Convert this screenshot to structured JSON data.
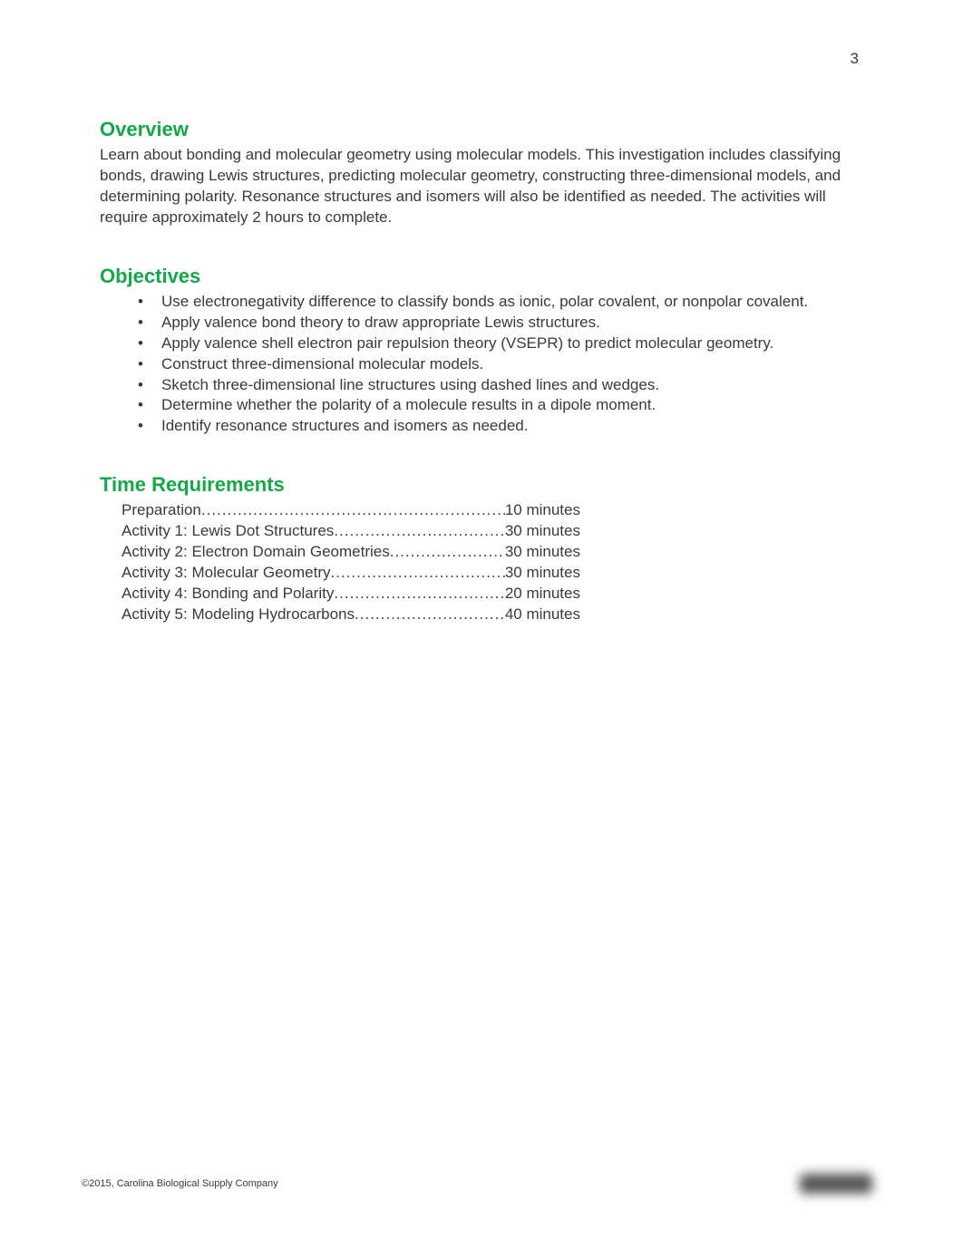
{
  "page_number": "3",
  "overview": {
    "heading": "Overview",
    "text": "Learn about bonding and molecular geometry using molecular models. This investigation includes classifying bonds, drawing Lewis structures, predicting molecular geometry, constructing three-dimensional models, and determining polarity. Resonance structures and isomers will also be identified as needed. The activities will require approximately 2 hours to complete."
  },
  "objectives": {
    "heading": "Objectives",
    "items": [
      "Use electronegativity difference to classify bonds as ionic, polar covalent, or nonpolar covalent.",
      "Apply valence bond theory to draw appropriate Lewis structures.",
      "Apply valence shell electron pair repulsion theory (VSEPR) to predict molecular geometry.",
      "Construct three-dimensional molecular models.",
      "Sketch three-dimensional line structures using dashed lines and wedges.",
      "Determine whether the polarity of a molecule results in a dipole moment.",
      "Identify resonance structures and isomers as needed."
    ]
  },
  "time_requirements": {
    "heading": "Time Requirements",
    "rows": [
      {
        "label": "Preparation",
        "value": "10 minutes"
      },
      {
        "label": "Activity 1: Lewis Dot Structures",
        "value": "30 minutes"
      },
      {
        "label": "Activity 2: Electron Domain Geometries ",
        "value": "30 minutes"
      },
      {
        "label": "Activity 3: Molecular Geometry ",
        "value": "30 minutes"
      },
      {
        "label": "Activity 4: Bonding and Polarity",
        "value": "20 minutes"
      },
      {
        "label": "Activity 5: Modeling Hydrocarbons",
        "value": "40 minutes"
      }
    ]
  },
  "footer": "©2015, Carolina Biological Supply Company",
  "colors": {
    "heading_color": "#14a84a",
    "text_color": "#3a3a3a",
    "background": "#ffffff"
  },
  "typography": {
    "body_fontsize": 17,
    "heading_fontsize": 22,
    "footer_fontsize": 11,
    "font_family": "Century Gothic"
  }
}
